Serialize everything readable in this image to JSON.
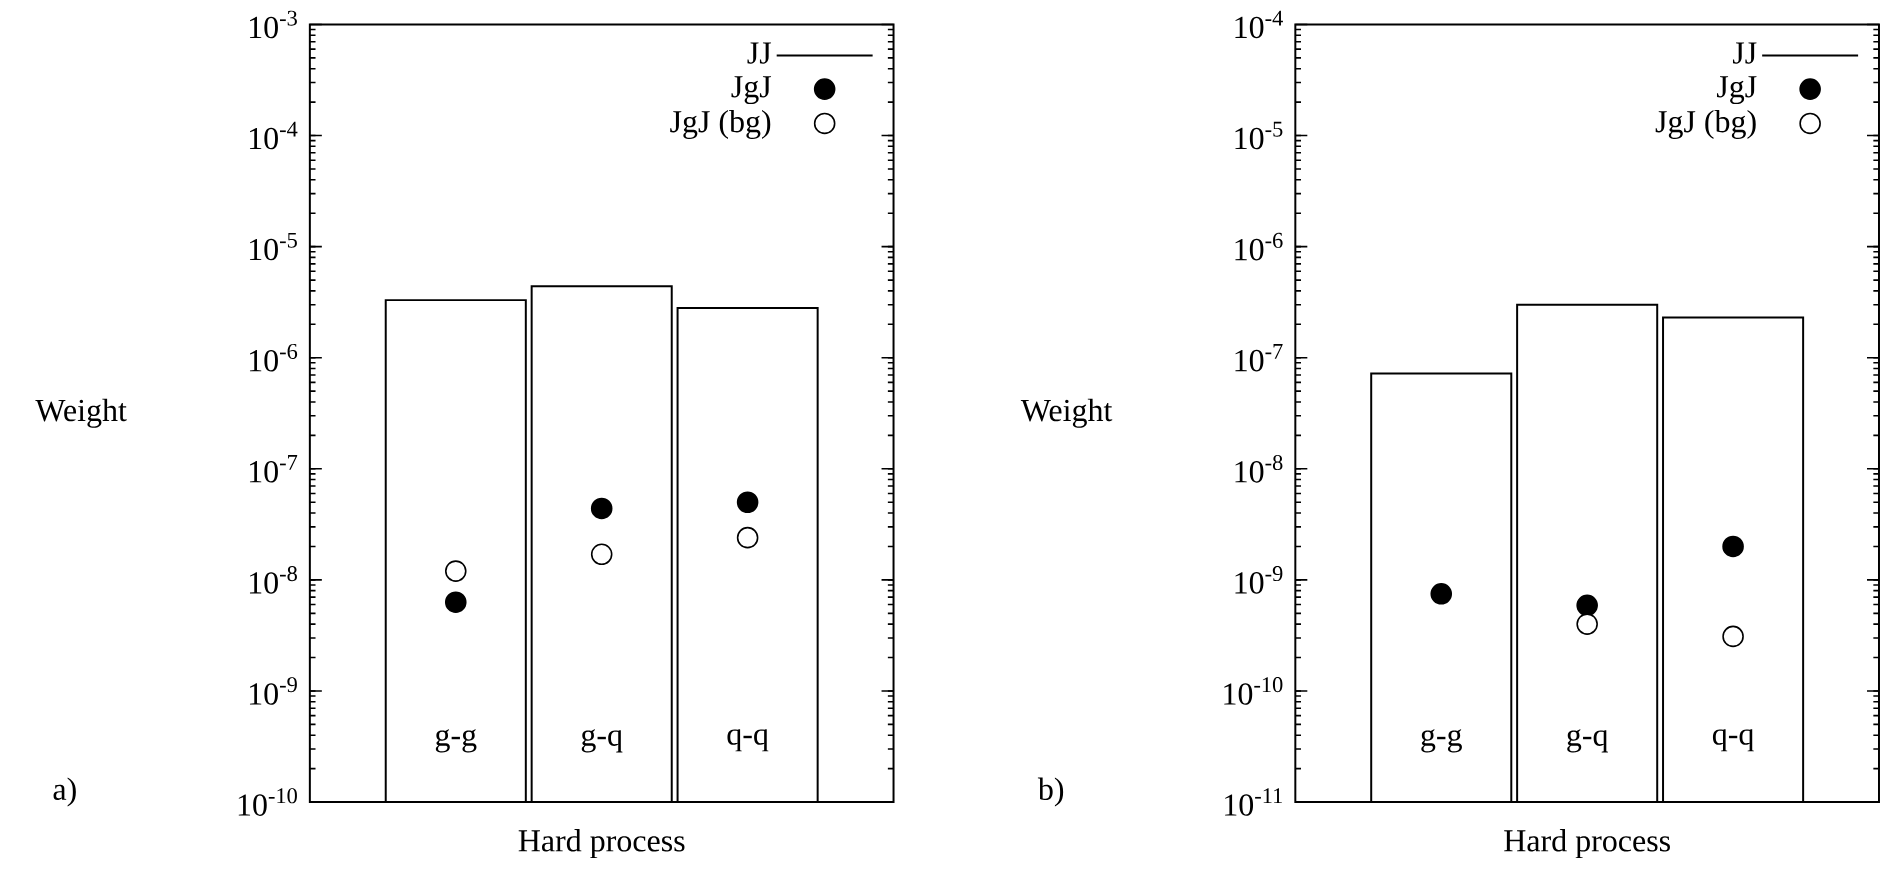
{
  "chart_data": [
    {
      "type": "bar",
      "xlabel": "Hard process",
      "ylabel": "Weight",
      "categories": [
        "g-g",
        "g-q",
        "q-q"
      ],
      "series": [
        {
          "name": "JJ",
          "color": "#000000",
          "values": [
            3.3e-06,
            4.4e-06,
            2.8e-06
          ]
        },
        {
          "name": "JgJ",
          "type": "scatter",
          "color": "#000000",
          "values": [
            6.3e-09,
            4.4e-08,
            5e-08
          ]
        },
        {
          "name": "JgJ (bg)",
          "type": "scatter",
          "color": "#ffffff",
          "values": [
            1.2e-08,
            1.7e-08,
            2.4e-08
          ]
        }
      ],
      "log": true,
      "ylim": [
        1e-10,
        0.001
      ],
      "yticks": [
        {
          "value": 1e-10,
          "label": "10$^{-10}$"
        },
        {
          "value": 1e-09,
          "label": "10$^{-9}$"
        },
        {
          "value": 1e-08,
          "label": "10$^{-8}$"
        },
        {
          "value": 1e-07,
          "label": "10$^{-7}$"
        },
        {
          "value": 1e-06,
          "label": "10$^{-6}$"
        },
        {
          "value": 1e-05,
          "label": "10$^{-5}$"
        },
        {
          "value": 0.0001,
          "label": "10$^{-4}$"
        },
        {
          "value": 0.001,
          "label": "10$^{-3}$"
        }
      ],
      "legend": "top right",
      "annotations": [
        "a)"
      ]
    },
    {
      "type": "bar",
      "xlabel": "Hard process",
      "ylabel": "Weight",
      "categories": [
        "g-g",
        "g-q",
        "q-q"
      ],
      "series": [
        {
          "name": "JJ",
          "color": "#000000",
          "values": [
            7.2e-08,
            3e-07,
            2.3e-07
          ]
        },
        {
          "name": "JgJ",
          "type": "scatter",
          "color": "#000000",
          "values": [
            7.5e-10,
            5.9e-10,
            2e-09
          ]
        },
        {
          "name": "JgJ (bg)",
          "type": "scatter",
          "color": "#ffffff",
          "values": [
            null,
            4e-10,
            3.1e-10
          ]
        }
      ],
      "log": true,
      "ylim": [
        1e-11,
        0.0001
      ],
      "yticks": [
        {
          "value": 1e-11,
          "label": "10$^{-11}$"
        },
        {
          "value": 1e-10,
          "label": "10$^{-10}$"
        },
        {
          "value": 1e-09,
          "label": "10$^{-9}$"
        },
        {
          "value": 1e-08,
          "label": "10$^{-8}$"
        },
        {
          "value": 1e-07,
          "label": "10$^{-7}$"
        },
        {
          "value": 1e-06,
          "label": "10$^{-6}$"
        },
        {
          "value": 1e-05,
          "label": "10$^{-5}$"
        },
        {
          "value": 0.0001,
          "label": "10$^{-4}$"
        }
      ],
      "legend": "top right",
      "annotations": [
        "b)"
      ]
    }
  ]
}
